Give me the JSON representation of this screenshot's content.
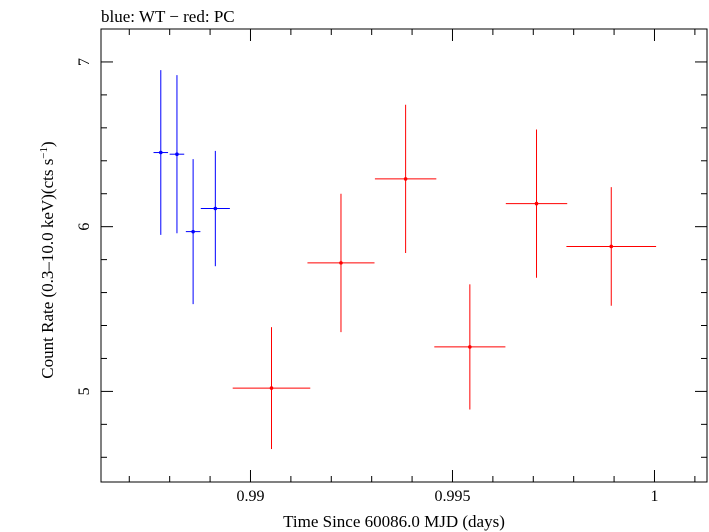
{
  "title": "blue: WT − red: PC",
  "chart_data": {
    "type": "scatter",
    "title": "blue: WT − red: PC",
    "xlabel": "Time Since 60086.0 MJD (days)",
    "ylabel_main": "Count Rate (0.3–10.0 keV)(cts s",
    "ylabel_exp": "−1",
    "ylabel_close": ")",
    "xlim": [
      0.9863,
      1.0013
    ],
    "ylim": [
      4.45,
      7.2
    ],
    "xticks": [
      {
        "value": 0.99,
        "label": "0.99"
      },
      {
        "value": 0.995,
        "label": "0.995"
      },
      {
        "value": 1.0,
        "label": "1"
      }
    ],
    "xminor": [
      0.987,
      0.988,
      0.989,
      0.991,
      0.992,
      0.993,
      0.994,
      0.996,
      0.997,
      0.998,
      0.999,
      1.001
    ],
    "yticks": [
      {
        "value": 5,
        "label": "5"
      },
      {
        "value": 6,
        "label": "6"
      },
      {
        "value": 7,
        "label": "7"
      }
    ],
    "yminor": [
      4.6,
      4.8,
      5.2,
      5.4,
      5.6,
      5.8,
      6.2,
      6.4,
      6.6,
      6.8,
      7.2
    ],
    "series": [
      {
        "color": "#0000ff",
        "points": [
          {
            "x": 0.98778,
            "xerr": 0.00018,
            "y": 6.45,
            "yerr": 0.5
          },
          {
            "x": 0.98818,
            "xerr": 0.00018,
            "y": 6.44,
            "yerr": 0.48
          },
          {
            "x": 0.98858,
            "xerr": 0.00018,
            "y": 5.97,
            "yerr": 0.44
          },
          {
            "x": 0.98913,
            "xerr": 0.00036,
            "y": 6.11,
            "yerr": 0.35
          }
        ]
      },
      {
        "color": "#ff0000",
        "points": [
          {
            "x": 0.99052,
            "xerr": 0.00096,
            "y": 5.02,
            "yerr": 0.37
          },
          {
            "x": 0.99224,
            "xerr": 0.00083,
            "y": 5.78,
            "yerr": 0.42
          },
          {
            "x": 0.99384,
            "xerr": 0.00076,
            "y": 6.29,
            "yerr": 0.45
          },
          {
            "x": 0.99543,
            "xerr": 0.00088,
            "y": 5.27,
            "yerr": 0.38
          },
          {
            "x": 0.99708,
            "xerr": 0.00076,
            "y": 6.14,
            "yerr": 0.45
          },
          {
            "x": 0.99893,
            "xerr": 0.00111,
            "y": 5.88,
            "yerr": 0.36
          }
        ]
      }
    ]
  }
}
